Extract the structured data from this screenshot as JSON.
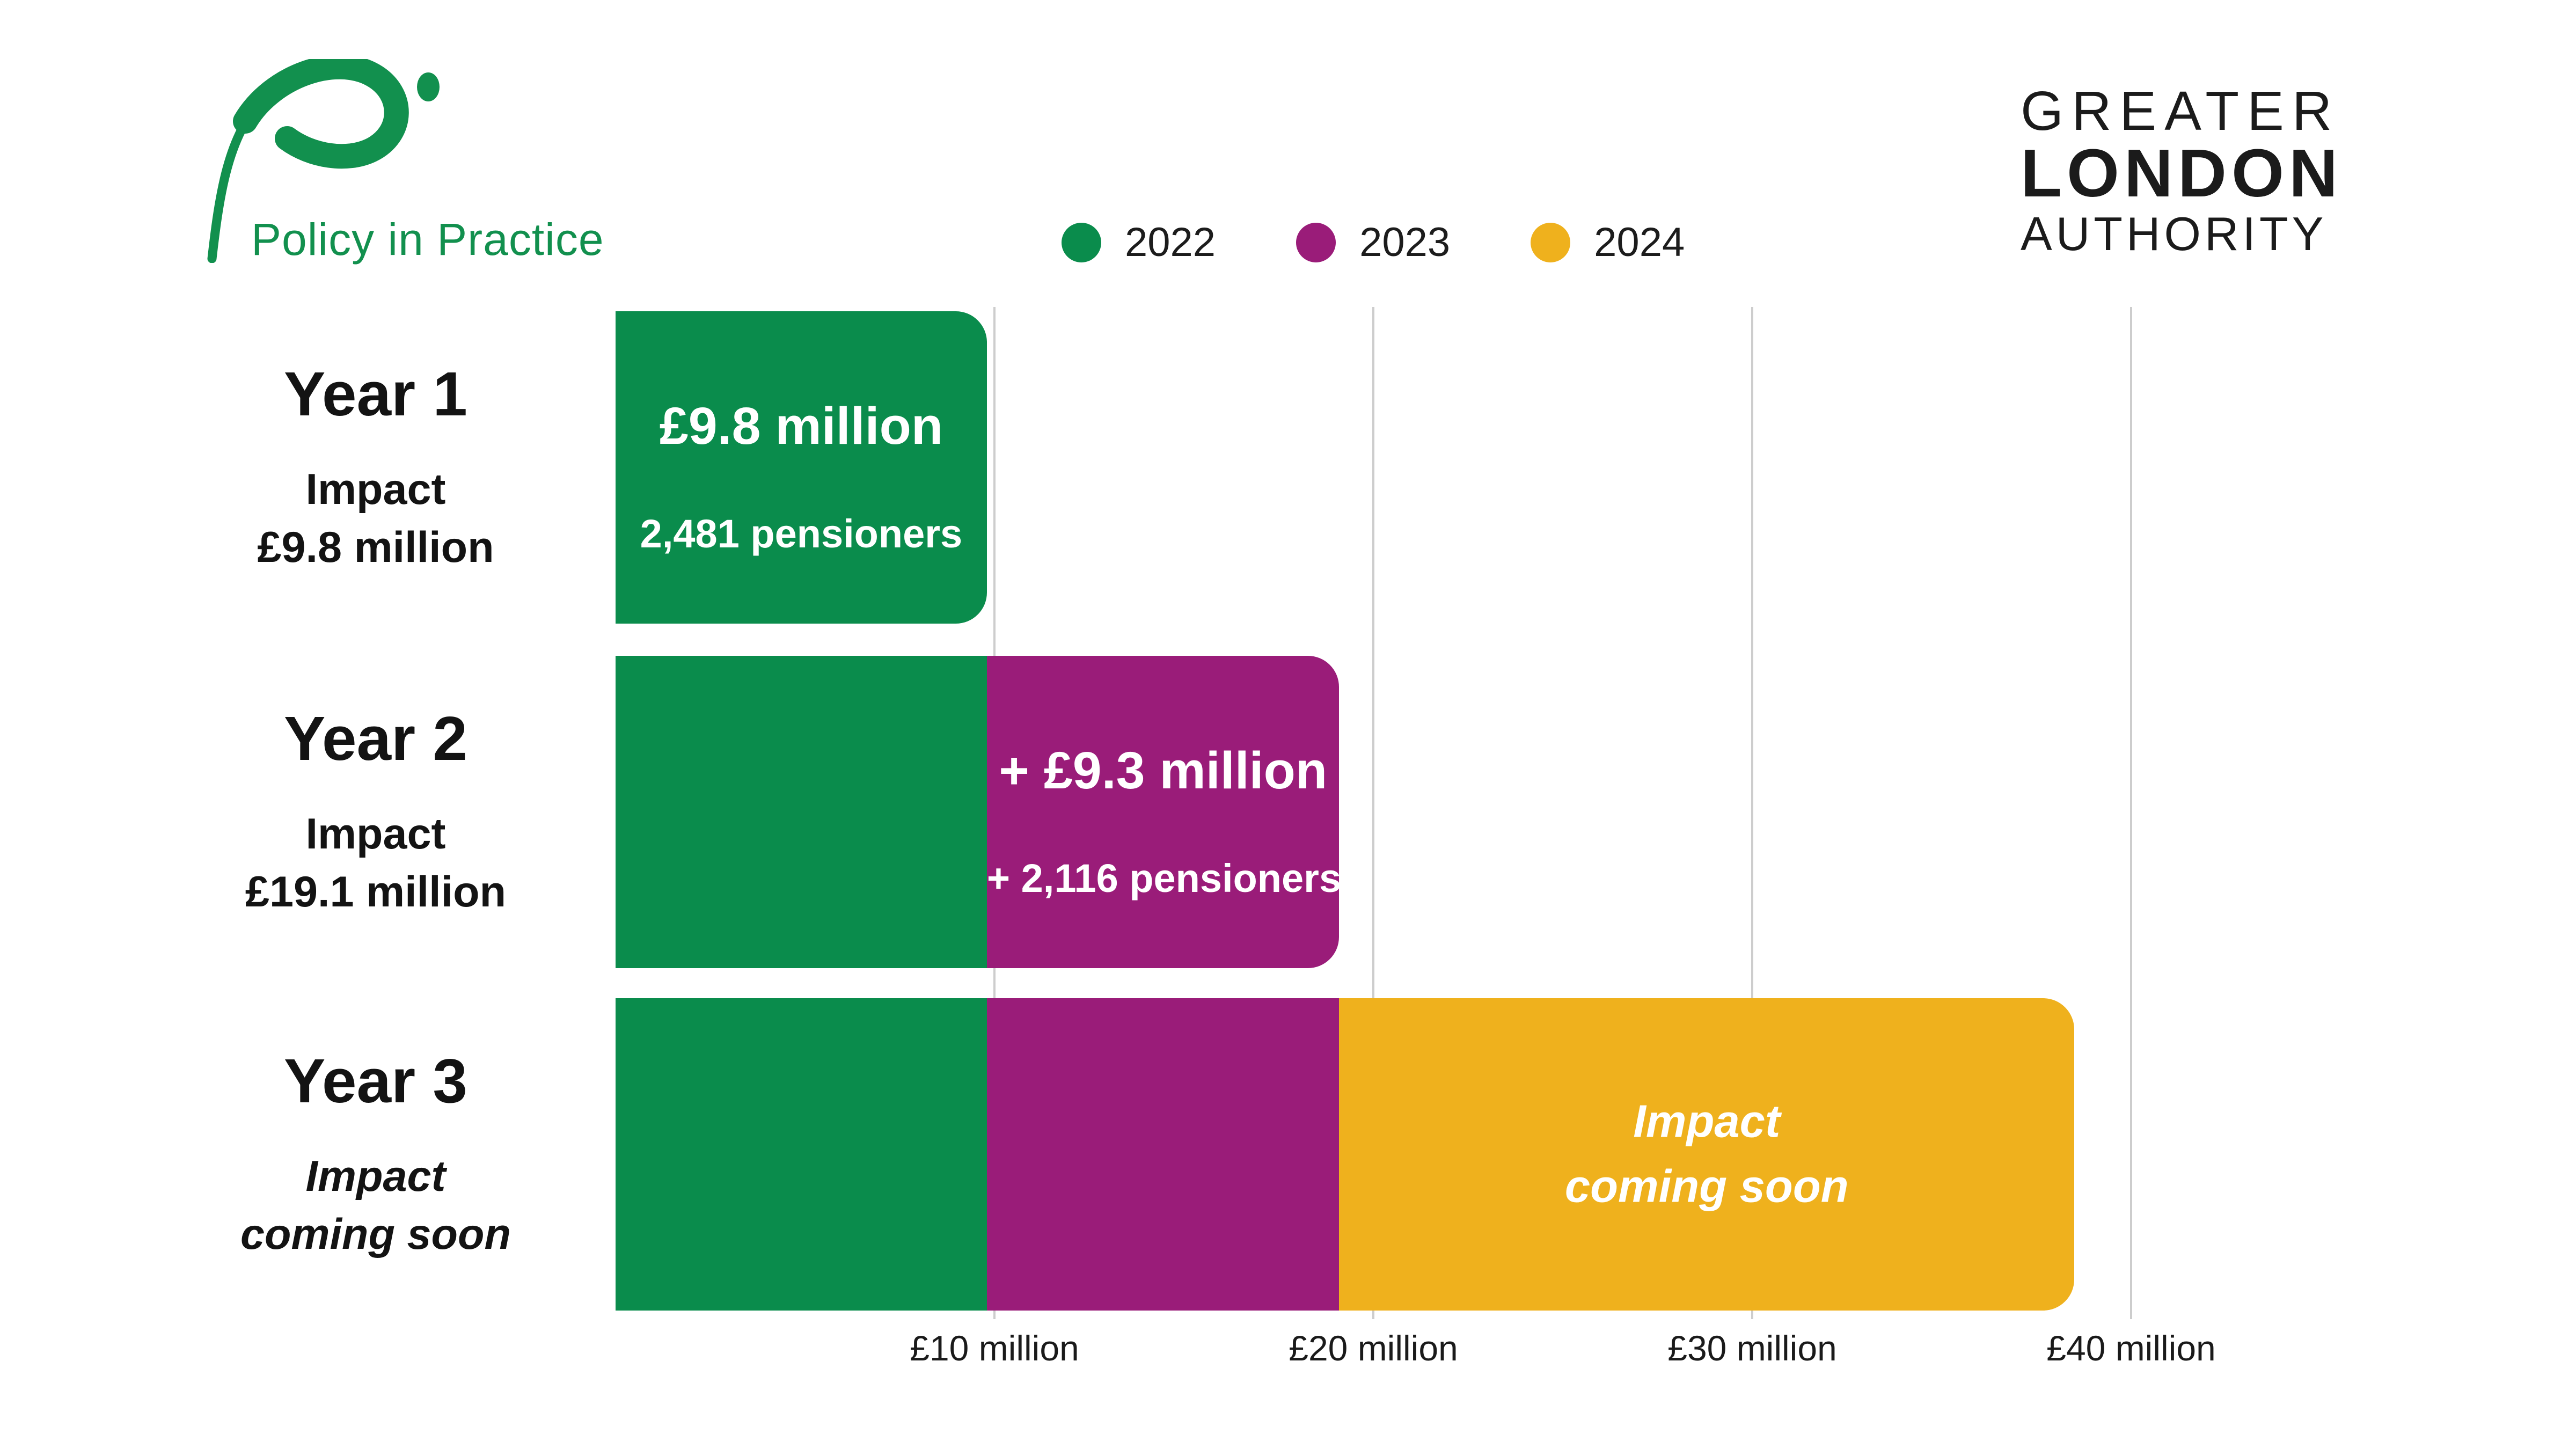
{
  "branding": {
    "policy_in_practice": {
      "text": "Policy in Practice",
      "green": "#12904e"
    },
    "gla": {
      "line1": "GREATER",
      "line2": "LONDON",
      "line3": "AUTHORITY",
      "ink": "#1b1b1b"
    }
  },
  "legend": {
    "items": [
      {
        "label": "2022",
        "color": "#0a8c4c"
      },
      {
        "label": "2023",
        "color": "#9a1c79"
      },
      {
        "label": "2024",
        "color": "#efb11d"
      }
    ]
  },
  "chart_data": {
    "type": "bar",
    "orientation": "horizontal",
    "stacked": true,
    "unit": "£ million",
    "grid": true,
    "legend_position": "top-center",
    "x_axis": {
      "ticks": [
        "£10 million",
        "£20 million",
        "£30 million",
        "£40 million"
      ],
      "tick_values": [
        10,
        20,
        30,
        40
      ],
      "range": [
        0,
        41
      ]
    },
    "series": [
      "2022",
      "2023",
      "2024"
    ],
    "rows": [
      {
        "name": "Year 1",
        "label_line1": "Impact",
        "label_line2": "£9.8 million",
        "total_shown": 9.8,
        "segments": [
          {
            "series": "2022",
            "value": 9.8,
            "color": "#0a8c4c",
            "headline": "£9.8 million",
            "subtext": "2,481 pensioners"
          }
        ]
      },
      {
        "name": "Year 2",
        "label_line1": "Impact",
        "label_line2": "£19.1 million",
        "total_shown": 19.1,
        "segments": [
          {
            "series": "2022",
            "value": 9.8,
            "color": "#0a8c4c"
          },
          {
            "series": "2023",
            "value": 9.3,
            "color": "#9a1c79",
            "headline": "+ £9.3 million",
            "subtext": "+ 2,116 pensioners"
          }
        ]
      },
      {
        "name": "Year 3",
        "label_line1": "Impact",
        "label_line2": "coming soon",
        "segments": [
          {
            "series": "2022",
            "value": 9.8,
            "color": "#0a8c4c"
          },
          {
            "series": "2023",
            "value": 9.3,
            "color": "#9a1c79"
          },
          {
            "series": "2024",
            "value": 19.4,
            "color": "#efb11d",
            "line1": "Impact",
            "line2": "coming soon"
          }
        ]
      }
    ]
  }
}
